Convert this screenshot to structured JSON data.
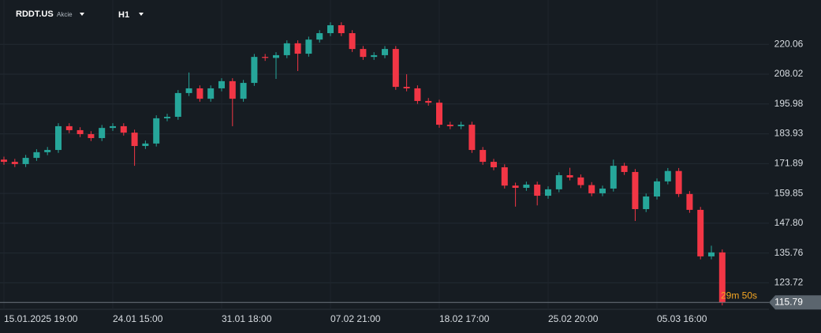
{
  "header": {
    "symbol": "RDDT.US",
    "kind": "Akcie",
    "timeframe": "H1"
  },
  "chart_data": {
    "type": "candlestick",
    "categories": [
      "15.01.2025 19:00",
      null,
      null,
      null,
      null,
      null,
      null,
      null,
      null,
      null,
      "24.01 15:00",
      null,
      null,
      null,
      null,
      null,
      null,
      null,
      null,
      null,
      "31.01 18:00",
      null,
      null,
      null,
      null,
      null,
      null,
      null,
      null,
      null,
      "07.02 21:00",
      null,
      null,
      null,
      null,
      null,
      null,
      null,
      null,
      null,
      "18.02 17:00",
      null,
      null,
      null,
      null,
      null,
      null,
      null,
      null,
      null,
      "25.02 20:00",
      null,
      null,
      null,
      null,
      null,
      null,
      null,
      null,
      null,
      "05.03 16:00",
      null,
      null,
      null,
      null,
      null,
      null
    ],
    "open": [
      173.5,
      172.6,
      171.7,
      174.2,
      176.5,
      177.4,
      187.0,
      185.4,
      183.8,
      182.2,
      186.3,
      187.0,
      184.4,
      179.0,
      180.0,
      190.2,
      190.8,
      200.4,
      202.3,
      198.1,
      202.3,
      205.2,
      198.1,
      204.5,
      215.0,
      214.6,
      215.7,
      220.5,
      216.3,
      222.0,
      224.6,
      227.8,
      224.6,
      218.2,
      215.0,
      215.7,
      218.2,
      202.9,
      202.3,
      197.2,
      196.5,
      187.6,
      187.0,
      187.6,
      177.4,
      172.6,
      170.4,
      163.0,
      162.1,
      163.4,
      158.9,
      161.5,
      167.2,
      166.3,
      163.2,
      159.9,
      161.8,
      171.0,
      168.5,
      153.5,
      158.6,
      164.7,
      168.9,
      159.6,
      153.2,
      134.4,
      136.0
    ],
    "high": [
      174.7,
      173.8,
      175.4,
      177.7,
      178.6,
      188.2,
      188.2,
      186.6,
      185.0,
      187.5,
      188.2,
      188.2,
      185.6,
      181.2,
      191.4,
      192.0,
      201.6,
      208.7,
      203.5,
      203.5,
      206.4,
      206.4,
      205.7,
      216.2,
      216.2,
      216.9,
      221.7,
      221.7,
      223.2,
      225.8,
      229.0,
      229.0,
      225.8,
      219.4,
      216.9,
      219.4,
      219.4,
      208.0,
      203.5,
      198.4,
      197.7,
      188.8,
      188.8,
      188.8,
      178.6,
      173.8,
      171.6,
      164.2,
      164.6,
      164.6,
      162.7,
      168.4,
      170.2,
      167.5,
      164.4,
      163.0,
      173.5,
      172.2,
      169.7,
      159.8,
      165.9,
      170.1,
      170.1,
      160.8,
      154.4,
      138.7,
      137.2
    ],
    "low": [
      171.4,
      170.5,
      170.5,
      173.0,
      175.3,
      176.2,
      184.2,
      182.6,
      181.0,
      181.0,
      185.1,
      183.2,
      171.0,
      177.8,
      178.8,
      189.0,
      189.6,
      199.2,
      196.9,
      196.9,
      201.1,
      187.0,
      196.9,
      203.3,
      213.4,
      206.1,
      214.5,
      209.3,
      215.1,
      220.8,
      223.4,
      223.4,
      217.0,
      213.8,
      213.8,
      214.5,
      201.7,
      201.1,
      196.0,
      195.3,
      186.4,
      185.8,
      185.8,
      176.2,
      171.4,
      169.2,
      161.8,
      154.5,
      160.9,
      155.0,
      157.7,
      160.3,
      165.1,
      162.0,
      158.7,
      158.7,
      160.6,
      167.3,
      148.7,
      152.3,
      157.4,
      163.5,
      158.4,
      152.0,
      133.2,
      133.2,
      114.6
    ],
    "close": [
      172.6,
      171.7,
      174.2,
      176.5,
      177.4,
      187.0,
      185.4,
      183.8,
      182.2,
      186.3,
      187.0,
      184.4,
      179.0,
      180.0,
      190.2,
      190.8,
      200.4,
      202.3,
      198.1,
      202.3,
      205.2,
      198.1,
      204.5,
      215.0,
      214.6,
      215.7,
      220.5,
      216.3,
      222.0,
      224.6,
      227.8,
      224.6,
      218.2,
      215.0,
      215.7,
      218.2,
      202.9,
      202.3,
      197.2,
      196.5,
      187.6,
      187.0,
      187.6,
      177.4,
      172.6,
      170.4,
      163.0,
      162.1,
      163.4,
      158.9,
      161.5,
      167.2,
      166.3,
      163.2,
      159.9,
      161.8,
      171.0,
      168.5,
      153.5,
      158.6,
      164.7,
      168.9,
      159.6,
      153.2,
      134.4,
      136.0,
      115.79
    ],
    "up_color": "#26a69a",
    "down_color": "#f23645",
    "ylim": [
      113.0,
      238.0
    ],
    "yticks": [
      {
        "value": 220.06,
        "label": "220.06"
      },
      {
        "value": 208.02,
        "label": "208.02"
      },
      {
        "value": 195.98,
        "label": "195.98"
      },
      {
        "value": 183.93,
        "label": "183.93"
      },
      {
        "value": 171.89,
        "label": "171.89"
      },
      {
        "value": 159.85,
        "label": "159.85"
      },
      {
        "value": 147.8,
        "label": "147.80"
      },
      {
        "value": 135.76,
        "label": "135.76"
      },
      {
        "value": 123.72,
        "label": "123.72"
      }
    ],
    "grid": true,
    "last_price": 115.79,
    "countdown": "29m 50s"
  }
}
